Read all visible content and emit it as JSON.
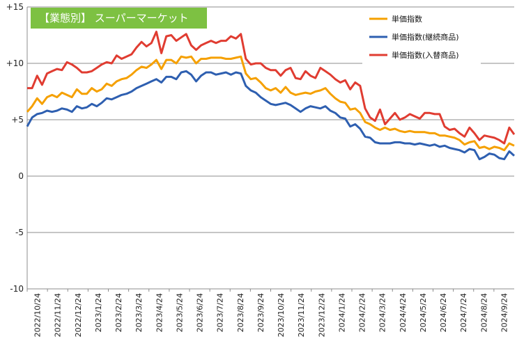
{
  "chart_data": {
    "type": "line",
    "title": "【業態別】 スーパーマーケット",
    "title_bg_color": "#7DC142",
    "ylim": [
      -10,
      15
    ],
    "yticks": [
      -10,
      -5,
      0,
      5,
      10,
      15
    ],
    "ytick_labels": [
      "-10",
      "-5",
      "0",
      "+5",
      "+10",
      "+15"
    ],
    "x_tick_labels": [
      "2022/10/24",
      "2022/11/24",
      "2022/12/24",
      "2023/1/24",
      "2023/2/24",
      "2023/3/24",
      "2023/4/24",
      "2023/5/24",
      "2023/6/24",
      "2023/7/24",
      "2023/8/24",
      "2023/9/24",
      "2023/10/24",
      "2023/11/24",
      "2023/12/24",
      "2024/1/24",
      "2024/2/24",
      "2024/3/24",
      "2024/4/24",
      "2024/5/24",
      "2024/6/24",
      "2024/7/24",
      "2024/8/24",
      "2024/9/24"
    ],
    "grid": "horizontal",
    "legend_position": "top-right",
    "series": [
      {
        "name": "単価指数",
        "color": "#F5A000",
        "values": [
          5.7,
          6.2,
          6.9,
          6.4,
          7.0,
          7.2,
          7.0,
          7.4,
          7.2,
          7.0,
          7.7,
          7.3,
          7.3,
          7.8,
          7.5,
          7.7,
          8.2,
          8.0,
          8.4,
          8.6,
          8.7,
          9.0,
          9.4,
          9.7,
          9.6,
          9.9,
          10.3,
          9.5,
          10.3,
          10.3,
          10.0,
          10.6,
          10.5,
          10.6,
          10.0,
          10.4,
          10.4,
          10.5,
          10.5,
          10.5,
          10.4,
          10.4,
          10.5,
          10.6,
          9.1,
          8.6,
          8.7,
          8.3,
          7.8,
          7.6,
          7.8,
          7.4,
          7.9,
          7.4,
          7.2,
          7.3,
          7.4,
          7.3,
          7.5,
          7.6,
          7.8,
          7.3,
          6.9,
          6.6,
          6.5,
          5.9,
          6.0,
          5.6,
          4.8,
          4.6,
          4.3,
          4.1,
          4.3,
          4.1,
          4.2,
          4.0,
          3.9,
          4.0,
          3.9,
          3.9,
          3.9,
          3.8,
          3.8,
          3.6,
          3.6,
          3.5,
          3.4,
          3.2,
          2.8,
          3.0,
          3.1,
          2.5,
          2.6,
          2.4,
          2.6,
          2.5,
          2.3,
          2.9,
          2.7
        ]
      },
      {
        "name": "単価指数(継続商品)",
        "color": "#2E5FB0",
        "values": [
          4.4,
          5.2,
          5.5,
          5.6,
          5.8,
          5.7,
          5.8,
          6.0,
          5.9,
          5.7,
          6.2,
          6.0,
          6.1,
          6.4,
          6.2,
          6.5,
          6.9,
          6.8,
          7.0,
          7.2,
          7.3,
          7.5,
          7.8,
          8.0,
          8.2,
          8.4,
          8.6,
          8.3,
          8.8,
          8.8,
          8.6,
          9.2,
          9.3,
          9.0,
          8.4,
          8.9,
          9.2,
          9.2,
          9.0,
          9.1,
          9.2,
          9.0,
          9.2,
          9.1,
          8.0,
          7.6,
          7.4,
          7.0,
          6.7,
          6.4,
          6.3,
          6.4,
          6.5,
          6.3,
          6.0,
          5.7,
          6.0,
          6.2,
          6.1,
          6.0,
          6.2,
          5.8,
          5.6,
          5.2,
          5.1,
          4.4,
          4.6,
          4.2,
          3.5,
          3.4,
          3.0,
          2.9,
          2.9,
          2.9,
          3.0,
          3.0,
          2.9,
          2.9,
          2.8,
          2.9,
          2.8,
          2.7,
          2.8,
          2.6,
          2.7,
          2.5,
          2.4,
          2.3,
          2.1,
          2.4,
          2.3,
          1.5,
          1.7,
          2.0,
          1.9,
          1.6,
          1.5,
          2.2,
          1.8
        ]
      },
      {
        "name": "単価指数(入替商品)",
        "color": "#E03C31",
        "values": [
          7.8,
          7.8,
          8.9,
          8.1,
          9.1,
          9.3,
          9.5,
          9.4,
          10.1,
          9.9,
          9.6,
          9.2,
          9.2,
          9.3,
          9.6,
          9.9,
          10.1,
          10.0,
          10.7,
          10.4,
          10.6,
          10.8,
          11.4,
          11.9,
          11.5,
          11.8,
          12.8,
          10.9,
          12.4,
          12.5,
          12.0,
          12.3,
          12.6,
          11.6,
          11.2,
          11.6,
          11.8,
          12.0,
          11.8,
          12.0,
          12.0,
          12.4,
          12.2,
          12.6,
          10.4,
          9.9,
          10.0,
          10.0,
          9.6,
          9.4,
          9.4,
          8.9,
          9.4,
          9.6,
          8.7,
          8.6,
          9.3,
          8.9,
          8.7,
          9.6,
          9.3,
          9.0,
          8.6,
          8.3,
          8.5,
          7.7,
          8.3,
          8.0,
          6.0,
          5.2,
          4.9,
          5.9,
          4.6,
          5.1,
          5.6,
          5.0,
          5.2,
          5.5,
          5.3,
          5.1,
          5.6,
          5.6,
          5.5,
          5.5,
          4.4,
          4.1,
          4.2,
          3.8,
          3.5,
          4.3,
          3.8,
          3.2,
          3.6,
          3.5,
          3.4,
          3.2,
          2.9,
          4.3,
          3.7
        ]
      }
    ]
  }
}
